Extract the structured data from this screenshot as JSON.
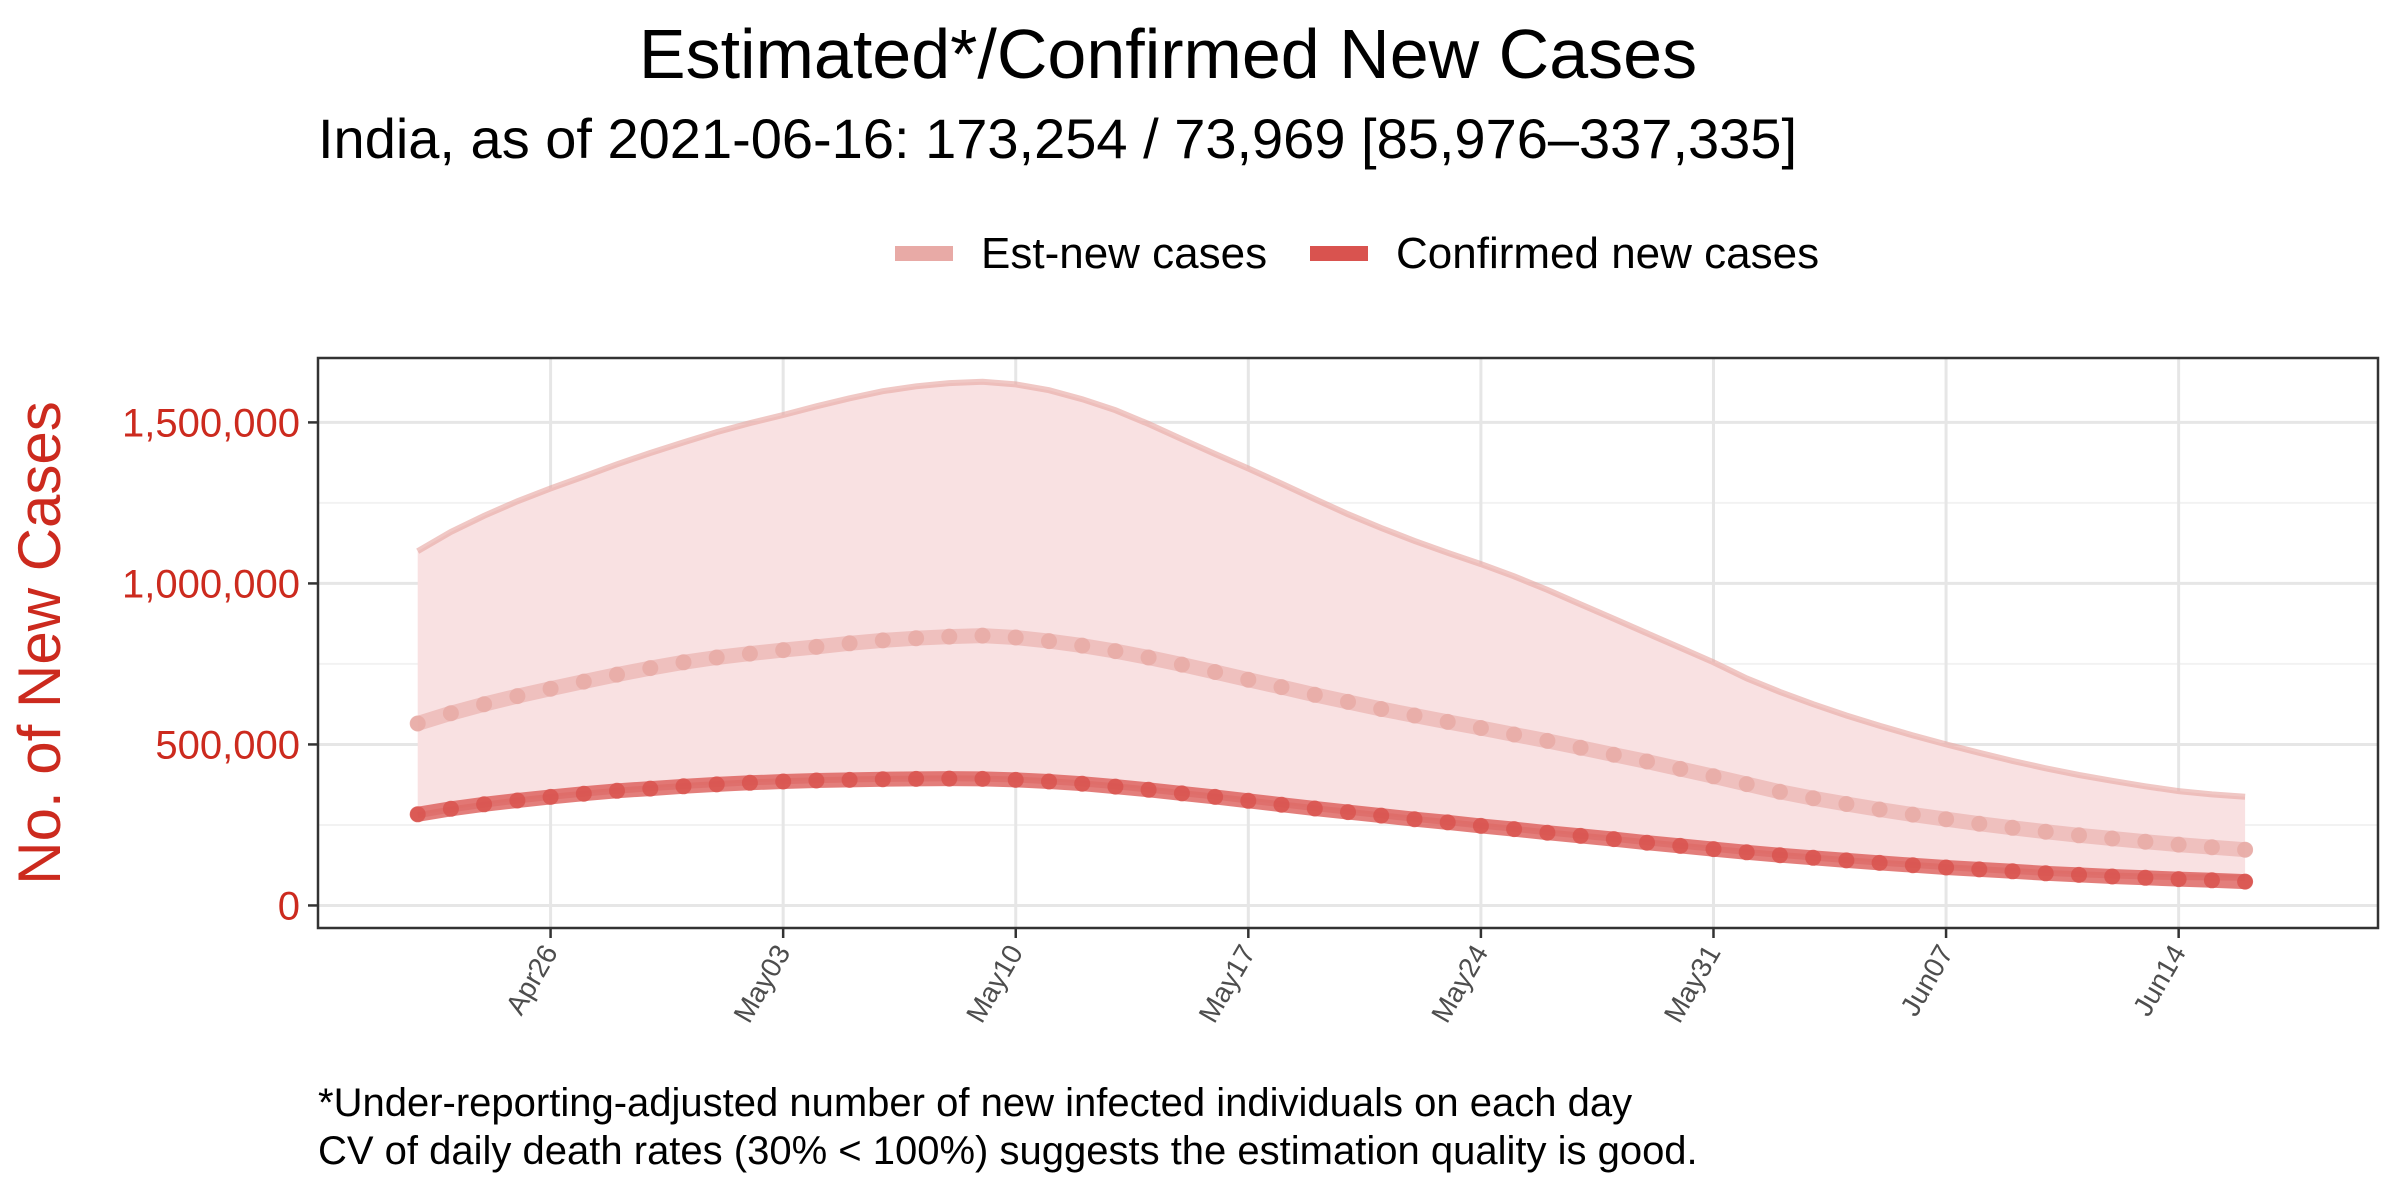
{
  "title": "Estimated*/Confirmed New Cases",
  "subtitle": "India, as of 2021-06-16: 173,254 / 73,969 [85,976–337,335]",
  "footnotes": [
    "*Under-reporting-adjusted number of new infected individuals on each day",
    "CV of daily death rates (30% < 100%) suggests the estimation quality is good."
  ],
  "colors": {
    "confirmed": "#d9534f",
    "estimated": "#e8aaa6",
    "ribbon": "#f9e1e2",
    "axis_text": "#cc2a1e"
  },
  "chart_data": {
    "type": "line",
    "ylabel": "No. of New Cases",
    "xlabel": "",
    "x_tick_labels": [
      "Apr26",
      "May03",
      "May10",
      "May17",
      "May24",
      "May31",
      "Jun07",
      "Jun14"
    ],
    "y_tick_labels": [
      "0",
      "500,000",
      "1,000,000",
      "1,500,000"
    ],
    "ylim": [
      -70000,
      1700000
    ],
    "xlim": [
      "2021-04-19",
      "2021-06-20"
    ],
    "grid": true,
    "legend_position": "top",
    "dates": [
      "2021-04-22",
      "2021-04-23",
      "2021-04-24",
      "2021-04-25",
      "2021-04-26",
      "2021-04-27",
      "2021-04-28",
      "2021-04-29",
      "2021-04-30",
      "2021-05-01",
      "2021-05-02",
      "2021-05-03",
      "2021-05-04",
      "2021-05-05",
      "2021-05-06",
      "2021-05-07",
      "2021-05-08",
      "2021-05-09",
      "2021-05-10",
      "2021-05-11",
      "2021-05-12",
      "2021-05-13",
      "2021-05-14",
      "2021-05-15",
      "2021-05-16",
      "2021-05-17",
      "2021-05-18",
      "2021-05-19",
      "2021-05-20",
      "2021-05-21",
      "2021-05-22",
      "2021-05-23",
      "2021-05-24",
      "2021-05-25",
      "2021-05-26",
      "2021-05-27",
      "2021-05-28",
      "2021-05-29",
      "2021-05-30",
      "2021-05-31",
      "2021-06-01",
      "2021-06-02",
      "2021-06-03",
      "2021-06-04",
      "2021-06-05",
      "2021-06-06",
      "2021-06-07",
      "2021-06-08",
      "2021-06-09",
      "2021-06-10",
      "2021-06-11",
      "2021-06-12",
      "2021-06-13",
      "2021-06-14",
      "2021-06-15",
      "2021-06-16"
    ],
    "series": [
      {
        "name": "Est-new cases",
        "values": [
          565000,
          597000,
          625000,
          650000,
          673000,
          695000,
          717000,
          737000,
          755000,
          770000,
          782000,
          793000,
          803000,
          814000,
          823000,
          830000,
          835000,
          838000,
          832000,
          821000,
          807000,
          790000,
          770000,
          748000,
          725000,
          701000,
          678000,
          654000,
          632000,
          610000,
          590000,
          570000,
          551000,
          531000,
          511000,
          490000,
          468000,
          447000,
          424000,
          401000,
          377000,
          353000,
          333000,
          315000,
          298000,
          282000,
          268000,
          254000,
          241000,
          229000,
          218000,
          208000,
          198000,
          189000,
          181000,
          173254
        ],
        "upper": [
          1100000,
          1160000,
          1210000,
          1255000,
          1295000,
          1332000,
          1370000,
          1405000,
          1438000,
          1470000,
          1498000,
          1523000,
          1550000,
          1575000,
          1597000,
          1612000,
          1622000,
          1626000,
          1618000,
          1600000,
          1572000,
          1538000,
          1495000,
          1448000,
          1402000,
          1357000,
          1310000,
          1262000,
          1215000,
          1172000,
          1132000,
          1095000,
          1060000,
          1022000,
          980000,
          935000,
          890000,
          845000,
          800000,
          755000,
          705000,
          663000,
          625000,
          590000,
          558000,
          528000,
          500000,
          474000,
          449000,
          426000,
          405000,
          387000,
          370000,
          355000,
          345000,
          337335
        ],
        "lower": [
          280000,
          298000,
          313000,
          326000,
          337000,
          347000,
          356000,
          364000,
          371000,
          377000,
          382000,
          386000,
          389000,
          391000,
          393000,
          394000,
          395000,
          394000,
          391000,
          386000,
          379000,
          370000,
          360000,
          349000,
          338000,
          326000,
          314000,
          302000,
          291000,
          280000,
          269000,
          259000,
          248000,
          238000,
          227000,
          217000,
          207000,
          196000,
          186000,
          176000,
          166000,
          157000,
          149000,
          141000,
          133000,
          126000,
          119000,
          113000,
          107000,
          101000,
          97000,
          93000,
          90000,
          88000,
          87000,
          85976
        ]
      },
      {
        "name": "Confirmed new cases",
        "values": [
          283000,
          300000,
          314000,
          326000,
          337000,
          347000,
          356000,
          363000,
          370000,
          376000,
          381000,
          385000,
          388000,
          390000,
          392000,
          393000,
          394000,
          393000,
          390000,
          385000,
          378000,
          369000,
          359000,
          348000,
          337000,
          325000,
          313000,
          301000,
          290000,
          279000,
          268000,
          258000,
          247000,
          237000,
          226000,
          216000,
          206000,
          195000,
          185000,
          175000,
          165000,
          156000,
          148000,
          140000,
          132000,
          125000,
          118000,
          112000,
          106000,
          100000,
          95000,
          90000,
          86000,
          82000,
          78000,
          73969
        ]
      }
    ]
  }
}
